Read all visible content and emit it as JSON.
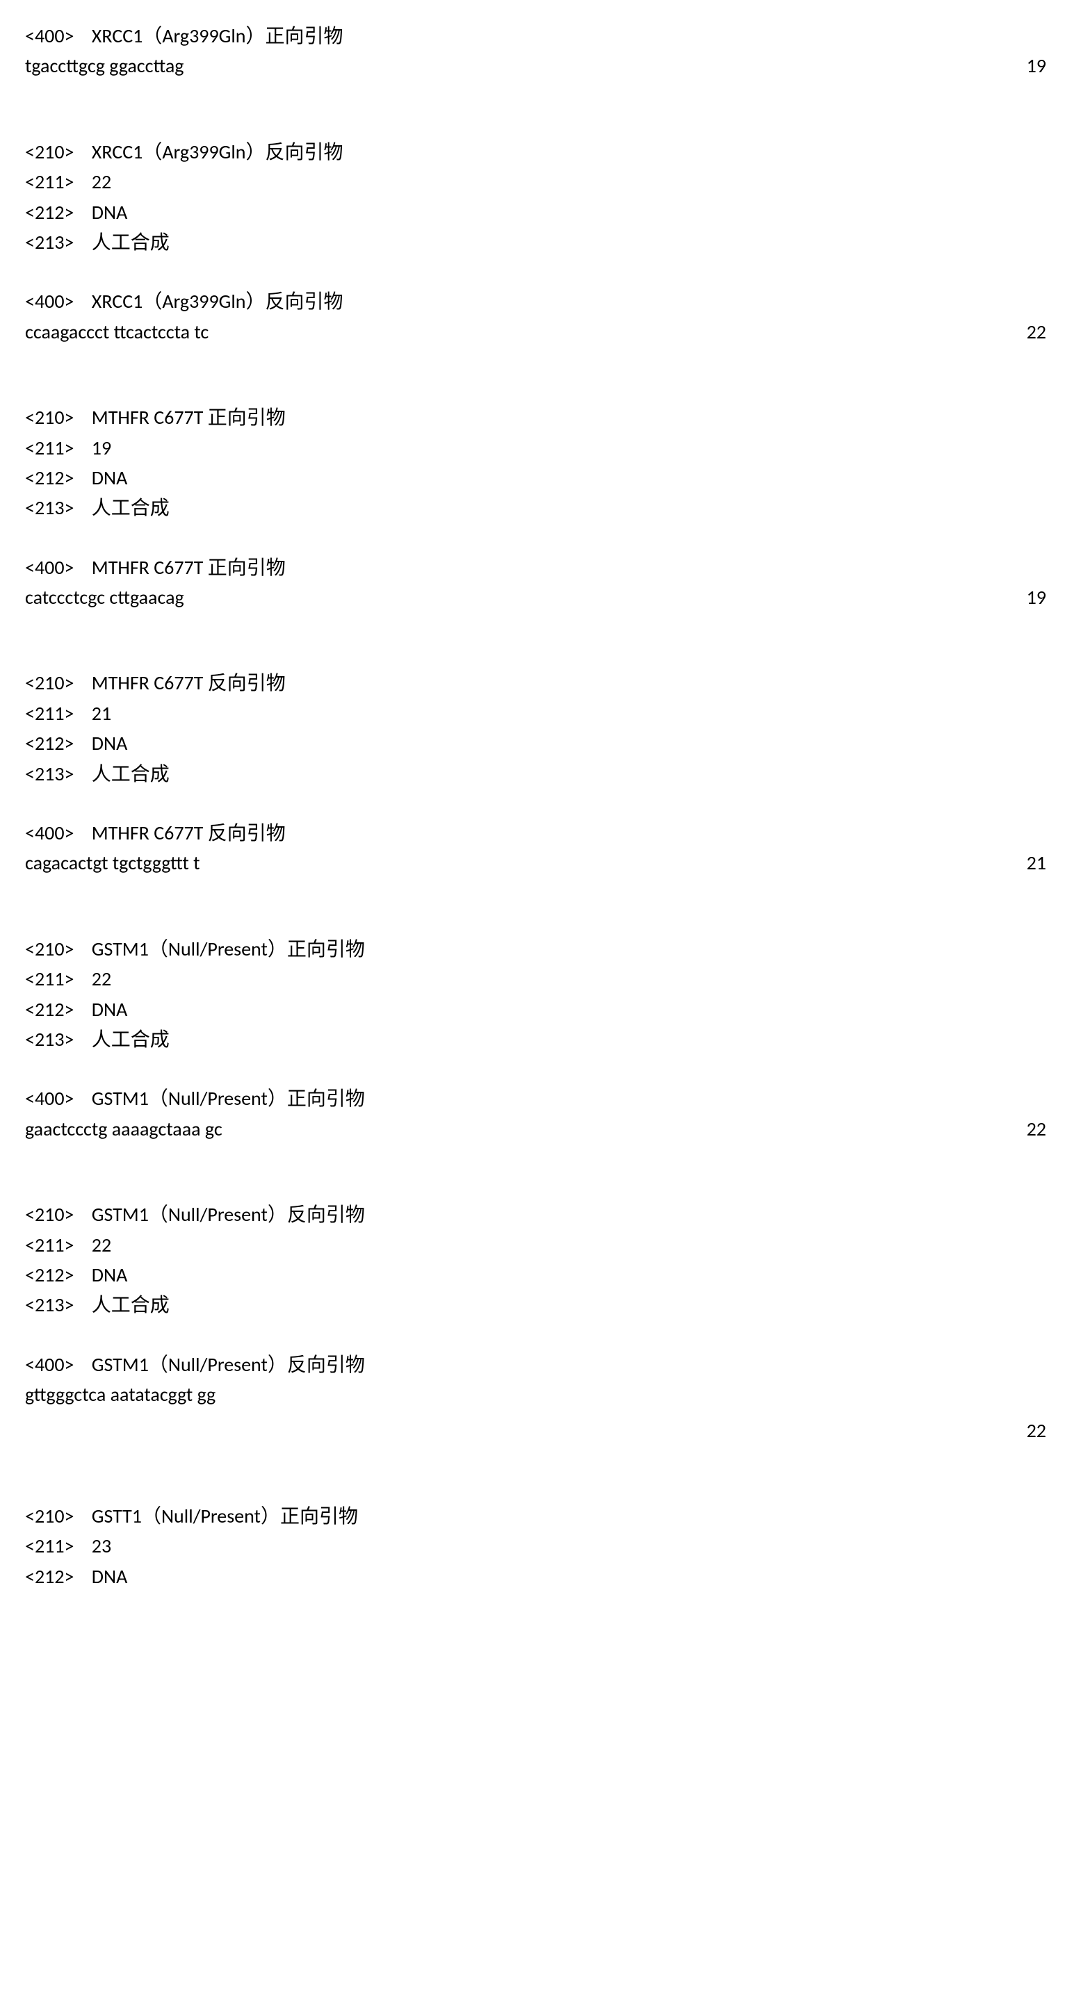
{
  "doc": {
    "font_family": "Calibri, Arial, Microsoft YaHei, sans-serif",
    "font_size_pt": 21,
    "text_color": "#000000",
    "background_color": "#ffffff"
  },
  "entries": [
    {
      "line400": "<400>    XRCC1（Arg399Gln）正向引物",
      "sequence": "tgaccttgcg ggaccttag",
      "length": "19",
      "len_position": "inline"
    },
    {
      "line210": "<210>    XRCC1（Arg399Gln）反向引物",
      "line211": "<211>    22",
      "line212": "<212>    DNA",
      "line213": "<213>    人工合成",
      "line400": "<400>    XRCC1（Arg399Gln）反向引物",
      "sequence": "ccaagaccct ttcactccta tc",
      "length": "22",
      "len_position": "inline"
    },
    {
      "line210": "<210>    MTHFR C677T 正向引物",
      "line211": "<211>    19",
      "line212": "<212>    DNA",
      "line213": "<213>    人工合成",
      "line400": "<400>    MTHFR C677T 正向引物",
      "sequence": "catccctcgc cttgaacag",
      "length": "19",
      "len_position": "inline"
    },
    {
      "line210": "<210>    MTHFR C677T 反向引物",
      "line211": "<211>    21",
      "line212": "<212>    DNA",
      "line213": "<213>    人工合成",
      "line400": "<400>    MTHFR C677T 反向引物",
      "sequence": "cagacactgt tgctgggttt t",
      "length": "21",
      "len_position": "inline"
    },
    {
      "line210": "<210>    GSTM1（Null/Present）正向引物",
      "line211": "<211>    22",
      "line212": "<212>    DNA",
      "line213": "<213>    人工合成",
      "line400": "<400>    GSTM1（Null/Present）正向引物",
      "sequence": "gaactccctg aaaagctaaa gc",
      "length": "22",
      "len_position": "inline"
    },
    {
      "line210": "<210>    GSTM1（Null/Present）反向引物",
      "line211": "<211>    22",
      "line212": "<212>    DNA",
      "line213": "<213>    人工合成",
      "line400": "<400>    GSTM1（Null/Present）反向引物",
      "sequence": "gttgggctca aatatacggt gg",
      "length": "22",
      "len_position": "below"
    },
    {
      "line210": "<210>    GSTT1（Null/Present）正向引物",
      "line211": "<211>    23",
      "line212": "<212>    DNA"
    }
  ]
}
